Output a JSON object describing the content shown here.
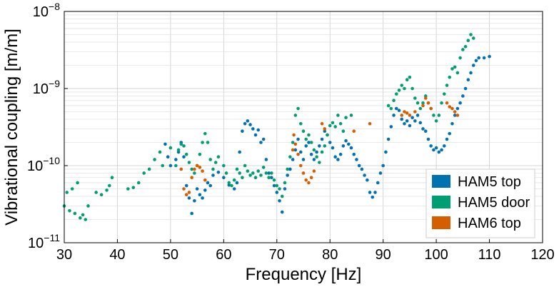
{
  "chart_data": {
    "type": "scatter",
    "title": "",
    "xlabel": "Frequency [Hz]",
    "ylabel": "Vibrational coupling [m/m]",
    "xlim": [
      30,
      120
    ],
    "ylim": [
      1e-11,
      1e-08
    ],
    "yscale": "log",
    "grid": true,
    "legend_position": "bottom-right",
    "x_ticks": [
      30,
      40,
      50,
      60,
      70,
      80,
      90,
      100,
      110,
      120
    ],
    "x_tick_labels": [
      "30",
      "40",
      "50",
      "60",
      "70",
      "80",
      "90",
      "100",
      "110",
      "120"
    ],
    "y_ticks": [
      1e-11,
      1e-10,
      1e-09,
      1e-08
    ],
    "y_tick_labels": [
      {
        "base": "10",
        "exp": "−11"
      },
      {
        "base": "10",
        "exp": "−10"
      },
      {
        "base": "10",
        "exp": "−9"
      },
      {
        "base": "10",
        "exp": "−8"
      }
    ],
    "series": [
      {
        "name": "HAM5 top",
        "color": "#0072b2",
        "points": [
          [
            49.0,
            1.9e-10
          ],
          [
            49.5,
            1.3e-10
          ],
          [
            50.0,
            1e-10
          ],
          [
            51.0,
            1.2e-10
          ],
          [
            51.5,
            1.5e-10
          ],
          [
            52.0,
            2e-10
          ],
          [
            52.5,
            1.3e-10
          ],
          [
            53.0,
            5.5e-11
          ],
          [
            53.5,
            3.8e-11
          ],
          [
            54.0,
            2.4e-11
          ],
          [
            54.5,
            3.5e-11
          ],
          [
            55.0,
            5e-11
          ],
          [
            55.5,
            4.2e-11
          ],
          [
            56.0,
            3.8e-11
          ],
          [
            56.5,
            4.8e-11
          ],
          [
            57.0,
            6e-11
          ],
          [
            57.5,
            5.5e-11
          ],
          [
            58.0,
            7.5e-11
          ],
          [
            59.0,
            8.2e-11
          ],
          [
            60.0,
            7e-11
          ],
          [
            61.0,
            5.6e-11
          ],
          [
            62.0,
            5e-11
          ],
          [
            62.5,
            6e-11
          ],
          [
            63.0,
            1.5e-10
          ],
          [
            63.5,
            2.8e-10
          ],
          [
            64.0,
            3.5e-10
          ],
          [
            64.5,
            3.8e-10
          ],
          [
            65.0,
            3.4e-10
          ],
          [
            65.5,
            3e-10
          ],
          [
            66.0,
            2.5e-10
          ],
          [
            66.5,
            2.9e-10
          ],
          [
            67.0,
            2e-10
          ],
          [
            67.5,
            2.2e-10
          ],
          [
            68.0,
            1.2e-10
          ],
          [
            68.5,
            8e-11
          ],
          [
            69.0,
            7e-11
          ],
          [
            69.5,
            5.5e-11
          ],
          [
            70.0,
            4.5e-11
          ],
          [
            70.5,
            3.5e-11
          ],
          [
            71.0,
            2.5e-11
          ],
          [
            71.5,
            5e-11
          ],
          [
            72.0,
            7.5e-11
          ],
          [
            72.5,
            9e-11
          ],
          [
            73.0,
            1.2e-10
          ],
          [
            73.5,
            1.6e-10
          ],
          [
            74.0,
            2.2e-10
          ],
          [
            74.5,
            1.5e-10
          ],
          [
            75.0,
            1.2e-10
          ],
          [
            75.5,
            1.8e-10
          ],
          [
            76.0,
            2e-10
          ],
          [
            76.5,
            1.4e-10
          ],
          [
            77.0,
            1.2e-10
          ],
          [
            77.5,
            1.5e-10
          ],
          [
            78.0,
            1.8e-10
          ],
          [
            78.5,
            2.2e-10
          ],
          [
            79.0,
            2.8e-10
          ],
          [
            79.5,
            2.5e-10
          ],
          [
            80.0,
            2e-10
          ],
          [
            80.5,
            1.7e-10
          ],
          [
            81.0,
            1.3e-10
          ],
          [
            81.5,
            1.2e-10
          ],
          [
            82.0,
            1.4e-10
          ],
          [
            82.5,
            1.8e-10
          ],
          [
            83.0,
            2.1e-10
          ],
          [
            83.5,
            1.9e-10
          ],
          [
            84.0,
            1.7e-10
          ],
          [
            84.5,
            1.4e-10
          ],
          [
            85.0,
            1.2e-10
          ],
          [
            85.5,
            1e-10
          ],
          [
            86.0,
            9e-11
          ],
          [
            86.5,
            7.5e-11
          ],
          [
            87.0,
            6.5e-11
          ],
          [
            87.5,
            4.5e-11
          ],
          [
            88.0,
            3.9e-11
          ],
          [
            88.5,
            4.5e-11
          ],
          [
            89.0,
            6e-11
          ],
          [
            89.5,
            8e-11
          ],
          [
            90.0,
            1e-10
          ],
          [
            90.5,
            1.5e-10
          ],
          [
            91.0,
            2.2e-10
          ],
          [
            91.5,
            3.2e-10
          ],
          [
            92.0,
            4.5e-10
          ],
          [
            92.5,
            5.5e-10
          ],
          [
            93.0,
            5.2e-10
          ],
          [
            93.5,
            4e-10
          ],
          [
            94.0,
            3.5e-10
          ],
          [
            94.5,
            3.8e-10
          ],
          [
            95.0,
            3.3e-10
          ],
          [
            95.5,
            4.2e-10
          ],
          [
            96.0,
            3.8e-10
          ],
          [
            96.5,
            4.5e-10
          ],
          [
            97.0,
            3.6e-10
          ],
          [
            97.5,
            3e-10
          ],
          [
            98.0,
            2.8e-10
          ],
          [
            98.5,
            2.2e-10
          ],
          [
            99.0,
            1.8e-10
          ],
          [
            99.5,
            1.6e-10
          ],
          [
            100.0,
            1.7e-10
          ],
          [
            100.5,
            1.5e-10
          ],
          [
            101.0,
            1.6e-10
          ],
          [
            101.5,
            1.8e-10
          ],
          [
            102.0,
            2.2e-10
          ],
          [
            102.5,
            2.6e-10
          ],
          [
            103.0,
            3.5e-10
          ],
          [
            103.5,
            4.5e-10
          ],
          [
            104.0,
            5.5e-10
          ],
          [
            104.5,
            6.5e-10
          ],
          [
            105.0,
            8e-10
          ],
          [
            105.5,
            1e-09
          ],
          [
            106.0,
            1.3e-09
          ],
          [
            106.5,
            1.6e-09
          ],
          [
            107.0,
            2e-09
          ],
          [
            107.5,
            2.3e-09
          ],
          [
            108.0,
            2.5e-09
          ],
          [
            109.0,
            2.5e-09
          ],
          [
            110.0,
            2.6e-09
          ]
        ]
      },
      {
        "name": "HAM5 door",
        "color": "#009e73",
        "points": [
          [
            30.0,
            3e-11
          ],
          [
            30.5,
            4.5e-11
          ],
          [
            31.0,
            2.6e-11
          ],
          [
            31.5,
            5e-11
          ],
          [
            32.0,
            2.4e-11
          ],
          [
            32.5,
            6e-11
          ],
          [
            33.0,
            2.1e-11
          ],
          [
            33.5,
            2.3e-11
          ],
          [
            34.0,
            2e-11
          ],
          [
            34.5,
            3e-11
          ],
          [
            36.0,
            4.5e-11
          ],
          [
            37.0,
            4.2e-11
          ],
          [
            38.0,
            4.8e-11
          ],
          [
            38.5,
            5.5e-11
          ],
          [
            39.0,
            7e-11
          ],
          [
            42.0,
            5e-11
          ],
          [
            43.0,
            5.2e-11
          ],
          [
            44.0,
            6e-11
          ],
          [
            45.0,
            8e-11
          ],
          [
            46.0,
            9e-11
          ],
          [
            47.0,
            1.2e-10
          ],
          [
            48.0,
            1.5e-10
          ],
          [
            48.5,
            1e-10
          ],
          [
            50.0,
            1.7e-10
          ],
          [
            51.0,
            1e-10
          ],
          [
            51.5,
            1.6e-10
          ],
          [
            52.0,
            1.9e-10
          ],
          [
            52.5,
            1.8e-10
          ],
          [
            53.0,
            1.4e-10
          ],
          [
            53.5,
            1.1e-10
          ],
          [
            54.0,
            9e-11
          ],
          [
            54.5,
            8e-11
          ],
          [
            55.0,
            1e-10
          ],
          [
            55.5,
            1.4e-10
          ],
          [
            56.0,
            2e-10
          ],
          [
            56.5,
            2.6e-10
          ],
          [
            57.0,
            2e-10
          ],
          [
            57.5,
            1.2e-10
          ],
          [
            58.0,
            9e-11
          ],
          [
            58.5,
            1.1e-10
          ],
          [
            59.0,
            1.3e-10
          ],
          [
            60.0,
            1e-10
          ],
          [
            60.5,
            8e-11
          ],
          [
            61.0,
            6e-11
          ],
          [
            61.5,
            5.5e-11
          ],
          [
            62.0,
            6.5e-11
          ],
          [
            62.5,
            9e-11
          ],
          [
            63.0,
            8e-11
          ],
          [
            63.5,
            7e-11
          ],
          [
            64.0,
            1e-10
          ],
          [
            64.5,
            8.5e-11
          ],
          [
            65.0,
            7.5e-11
          ],
          [
            65.5,
            8e-11
          ],
          [
            66.0,
            7e-11
          ],
          [
            66.5,
            8.5e-11
          ],
          [
            67.0,
            7.5e-11
          ],
          [
            67.5,
            9.5e-11
          ],
          [
            68.0,
            8e-11
          ],
          [
            68.5,
            7e-11
          ],
          [
            69.0,
            8e-11
          ],
          [
            69.5,
            6.5e-11
          ],
          [
            70.0,
            5.5e-11
          ],
          [
            70.5,
            5e-11
          ],
          [
            71.0,
            4e-11
          ],
          [
            71.5,
            6e-11
          ],
          [
            72.0,
            9e-11
          ],
          [
            72.5,
            1.3e-10
          ],
          [
            73.0,
            2e-10
          ],
          [
            73.5,
            4.5e-10
          ],
          [
            74.0,
            5.5e-10
          ],
          [
            74.5,
            3.5e-10
          ],
          [
            75.0,
            2.8e-10
          ],
          [
            75.5,
            2.2e-10
          ],
          [
            76.0,
            2.5e-10
          ],
          [
            76.5,
            2e-10
          ],
          [
            77.0,
            1.6e-10
          ],
          [
            77.5,
            1.3e-10
          ],
          [
            78.0,
            1.1e-10
          ],
          [
            78.5,
            1.5e-10
          ],
          [
            79.0,
            1.8e-10
          ],
          [
            79.5,
            2.5e-10
          ],
          [
            80.0,
            3.3e-10
          ],
          [
            80.5,
            3.6e-10
          ],
          [
            81.0,
            3.2e-10
          ],
          [
            81.5,
            4.5e-10
          ],
          [
            82.0,
            3.5e-10
          ],
          [
            82.5,
            2.8e-10
          ],
          [
            83.0,
            4.2e-10
          ],
          [
            84.0,
            4.5e-10
          ],
          [
            91.0,
            6e-10
          ],
          [
            91.5,
            5.5e-10
          ],
          [
            92.0,
            7e-10
          ],
          [
            92.5,
            8.5e-10
          ],
          [
            93.0,
            9.5e-10
          ],
          [
            93.5,
            1.1e-09
          ],
          [
            94.0,
            1e-09
          ],
          [
            94.5,
            1.3e-09
          ],
          [
            95.0,
            1.4e-09
          ],
          [
            95.5,
            1e-09
          ],
          [
            96.0,
            7.5e-10
          ],
          [
            96.5,
            6.5e-10
          ],
          [
            97.0,
            5.5e-10
          ],
          [
            97.5,
            6.5e-10
          ],
          [
            98.0,
            8e-10
          ],
          [
            98.5,
            6.5e-10
          ],
          [
            99.0,
            5.5e-10
          ],
          [
            99.5,
            4.5e-10
          ],
          [
            100.0,
            3.8e-10
          ],
          [
            100.5,
            4.5e-10
          ],
          [
            101.0,
            6.5e-10
          ],
          [
            101.5,
            8.5e-10
          ],
          [
            102.0,
            1.1e-09
          ],
          [
            102.5,
            1.4e-09
          ],
          [
            103.0,
            1.8e-09
          ],
          [
            103.5,
            1.9e-09
          ],
          [
            104.0,
            1.6e-09
          ],
          [
            104.5,
            2.5e-09
          ],
          [
            105.0,
            3.2e-09
          ],
          [
            105.5,
            3.5e-09
          ],
          [
            106.0,
            4.2e-09
          ],
          [
            106.5,
            5e-09
          ],
          [
            107.0,
            4.5e-09
          ]
        ]
      },
      {
        "name": "HAM6 top",
        "color": "#d55e00",
        "points": [
          [
            52.0,
            9e-11
          ],
          [
            52.5,
            5e-11
          ],
          [
            53.0,
            4.2e-11
          ],
          [
            53.5,
            4.5e-11
          ],
          [
            54.0,
            7e-11
          ],
          [
            54.5,
            9e-11
          ],
          [
            55.0,
            1e-10
          ],
          [
            55.5,
            9.5e-11
          ],
          [
            56.0,
            8.5e-11
          ],
          [
            56.5,
            6.5e-11
          ],
          [
            73.0,
            1.6e-10
          ],
          [
            73.5,
            1.9e-10
          ],
          [
            74.0,
            1.4e-10
          ],
          [
            74.5,
            1e-10
          ],
          [
            75.0,
            8e-11
          ],
          [
            75.5,
            6.5e-11
          ],
          [
            76.0,
            6e-11
          ],
          [
            76.5,
            7e-11
          ],
          [
            77.0,
            8.5e-11
          ],
          [
            73.2,
            2.5e-10
          ],
          [
            78.5,
            3.5e-10
          ],
          [
            79.0,
            3e-10
          ],
          [
            84.5,
            2.8e-10
          ],
          [
            87.5,
            3.5e-10
          ],
          [
            93.5,
            4.5e-10
          ],
          [
            94.0,
            5e-10
          ],
          [
            94.5,
            4.8e-10
          ],
          [
            95.0,
            4.5e-10
          ],
          [
            96.0,
            5e-10
          ],
          [
            97.5,
            6e-10
          ],
          [
            98.0,
            7.5e-10
          ],
          [
            98.5,
            6.5e-10
          ],
          [
            99.0,
            5.5e-10
          ],
          [
            102.0,
            6.5e-10
          ],
          [
            102.5,
            5.8e-10
          ],
          [
            103.0,
            5.5e-10
          ],
          [
            103.5,
            5e-10
          ],
          [
            104.0,
            4.5e-10
          ]
        ]
      }
    ]
  }
}
